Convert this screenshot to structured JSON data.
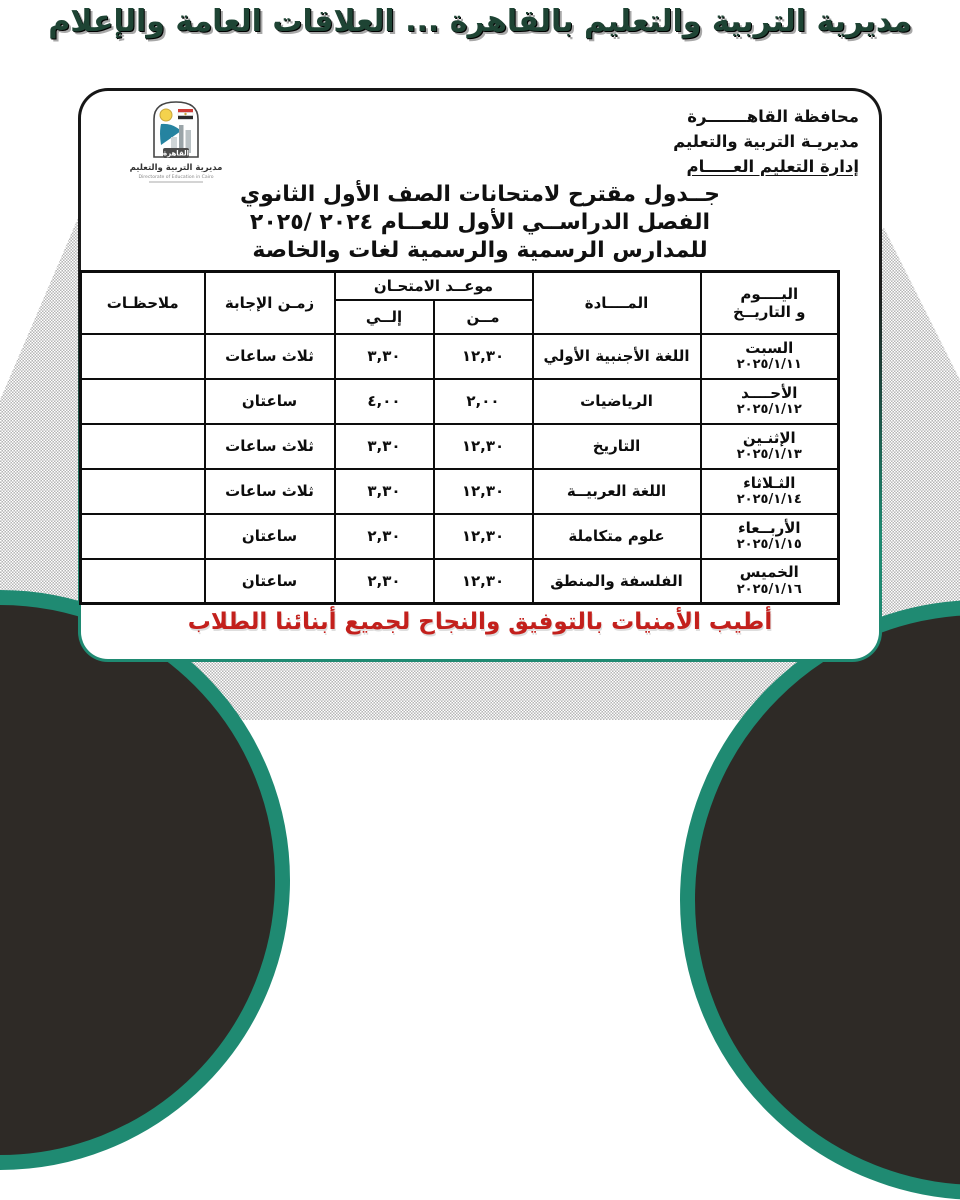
{
  "banner": {
    "title": "مديرية التربية والتعليم بالقاهرة ... العلاقات العامة والإعلام"
  },
  "letterhead": {
    "line1": "محافظة القاهـــــــرة",
    "line2": "مديريـة التربية والتعليم",
    "line3": "إدارة التعليم العـــــام"
  },
  "logo": {
    "cartouche": "القاهرة",
    "caption_ar": "مديرية التربية والتعليم",
    "caption_en": "Directorate of Education in Cairo"
  },
  "doc_title": {
    "line1": "جــدول مقترح لامتحانات الصف الأول الثانوي",
    "line2": "الفصل الدراســي الأول للعــام ٢٠٢٤ /٢٠٢٥",
    "line3": "للمدارس الرسمية والرسمية لغات والخاصة"
  },
  "table": {
    "headers": {
      "day_line1": "اليــــوم",
      "day_line2": "و التاريــخ",
      "subject": "المــــادة",
      "exam_time": "موعــد الامتحـان",
      "from": "مــن",
      "to": "إلــي",
      "duration": "زمـن الإجابة",
      "notes": "ملاحظـات"
    },
    "rows": [
      {
        "day": "السبت",
        "date": "٢٠٢٥/١/١١",
        "subject": "اللغة الأجنبية الأولي",
        "from": "١٢,٣٠",
        "to": "٣,٣٠",
        "duration": "ثلاث ساعات",
        "notes": ""
      },
      {
        "day": "الأحــــد",
        "date": "٢٠٢٥/١/١٢",
        "subject": "الرياضيات",
        "from": "٢,٠٠",
        "to": "٤,٠٠",
        "duration": "ساعتان",
        "notes": ""
      },
      {
        "day": "الإثنـين",
        "date": "٢٠٢٥/١/١٣",
        "subject": "التاريخ",
        "from": "١٢,٣٠",
        "to": "٣,٣٠",
        "duration": "ثلاث ساعات",
        "notes": ""
      },
      {
        "day": "الثـلاثاء",
        "date": "٢٠٢٥/١/١٤",
        "subject": "اللغة العربيــة",
        "from": "١٢,٣٠",
        "to": "٣,٣٠",
        "duration": "ثلاث ساعات",
        "notes": ""
      },
      {
        "day": "الأربــعاء",
        "date": "٢٠٢٥/١/١٥",
        "subject": "علوم متكاملة",
        "from": "١٢,٣٠",
        "to": "٢,٣٠",
        "duration": "ساعتان",
        "notes": ""
      },
      {
        "day": "الخميس",
        "date": "٢٠٢٥/١/١٦",
        "subject": "الفلسفة والمنطق",
        "from": "١٢,٣٠",
        "to": "٢,٣٠",
        "duration": "ساعتان",
        "notes": ""
      }
    ]
  },
  "footer": {
    "message": "أطيب الأمنيات بالتوفيق والنجاح لجميع أبنائنا الطلاب"
  },
  "colors": {
    "teal_accent": "#1f8a72",
    "blob_dark": "#2e2a26",
    "footer_red": "#c3201c",
    "banner_green": "#1e4434"
  }
}
